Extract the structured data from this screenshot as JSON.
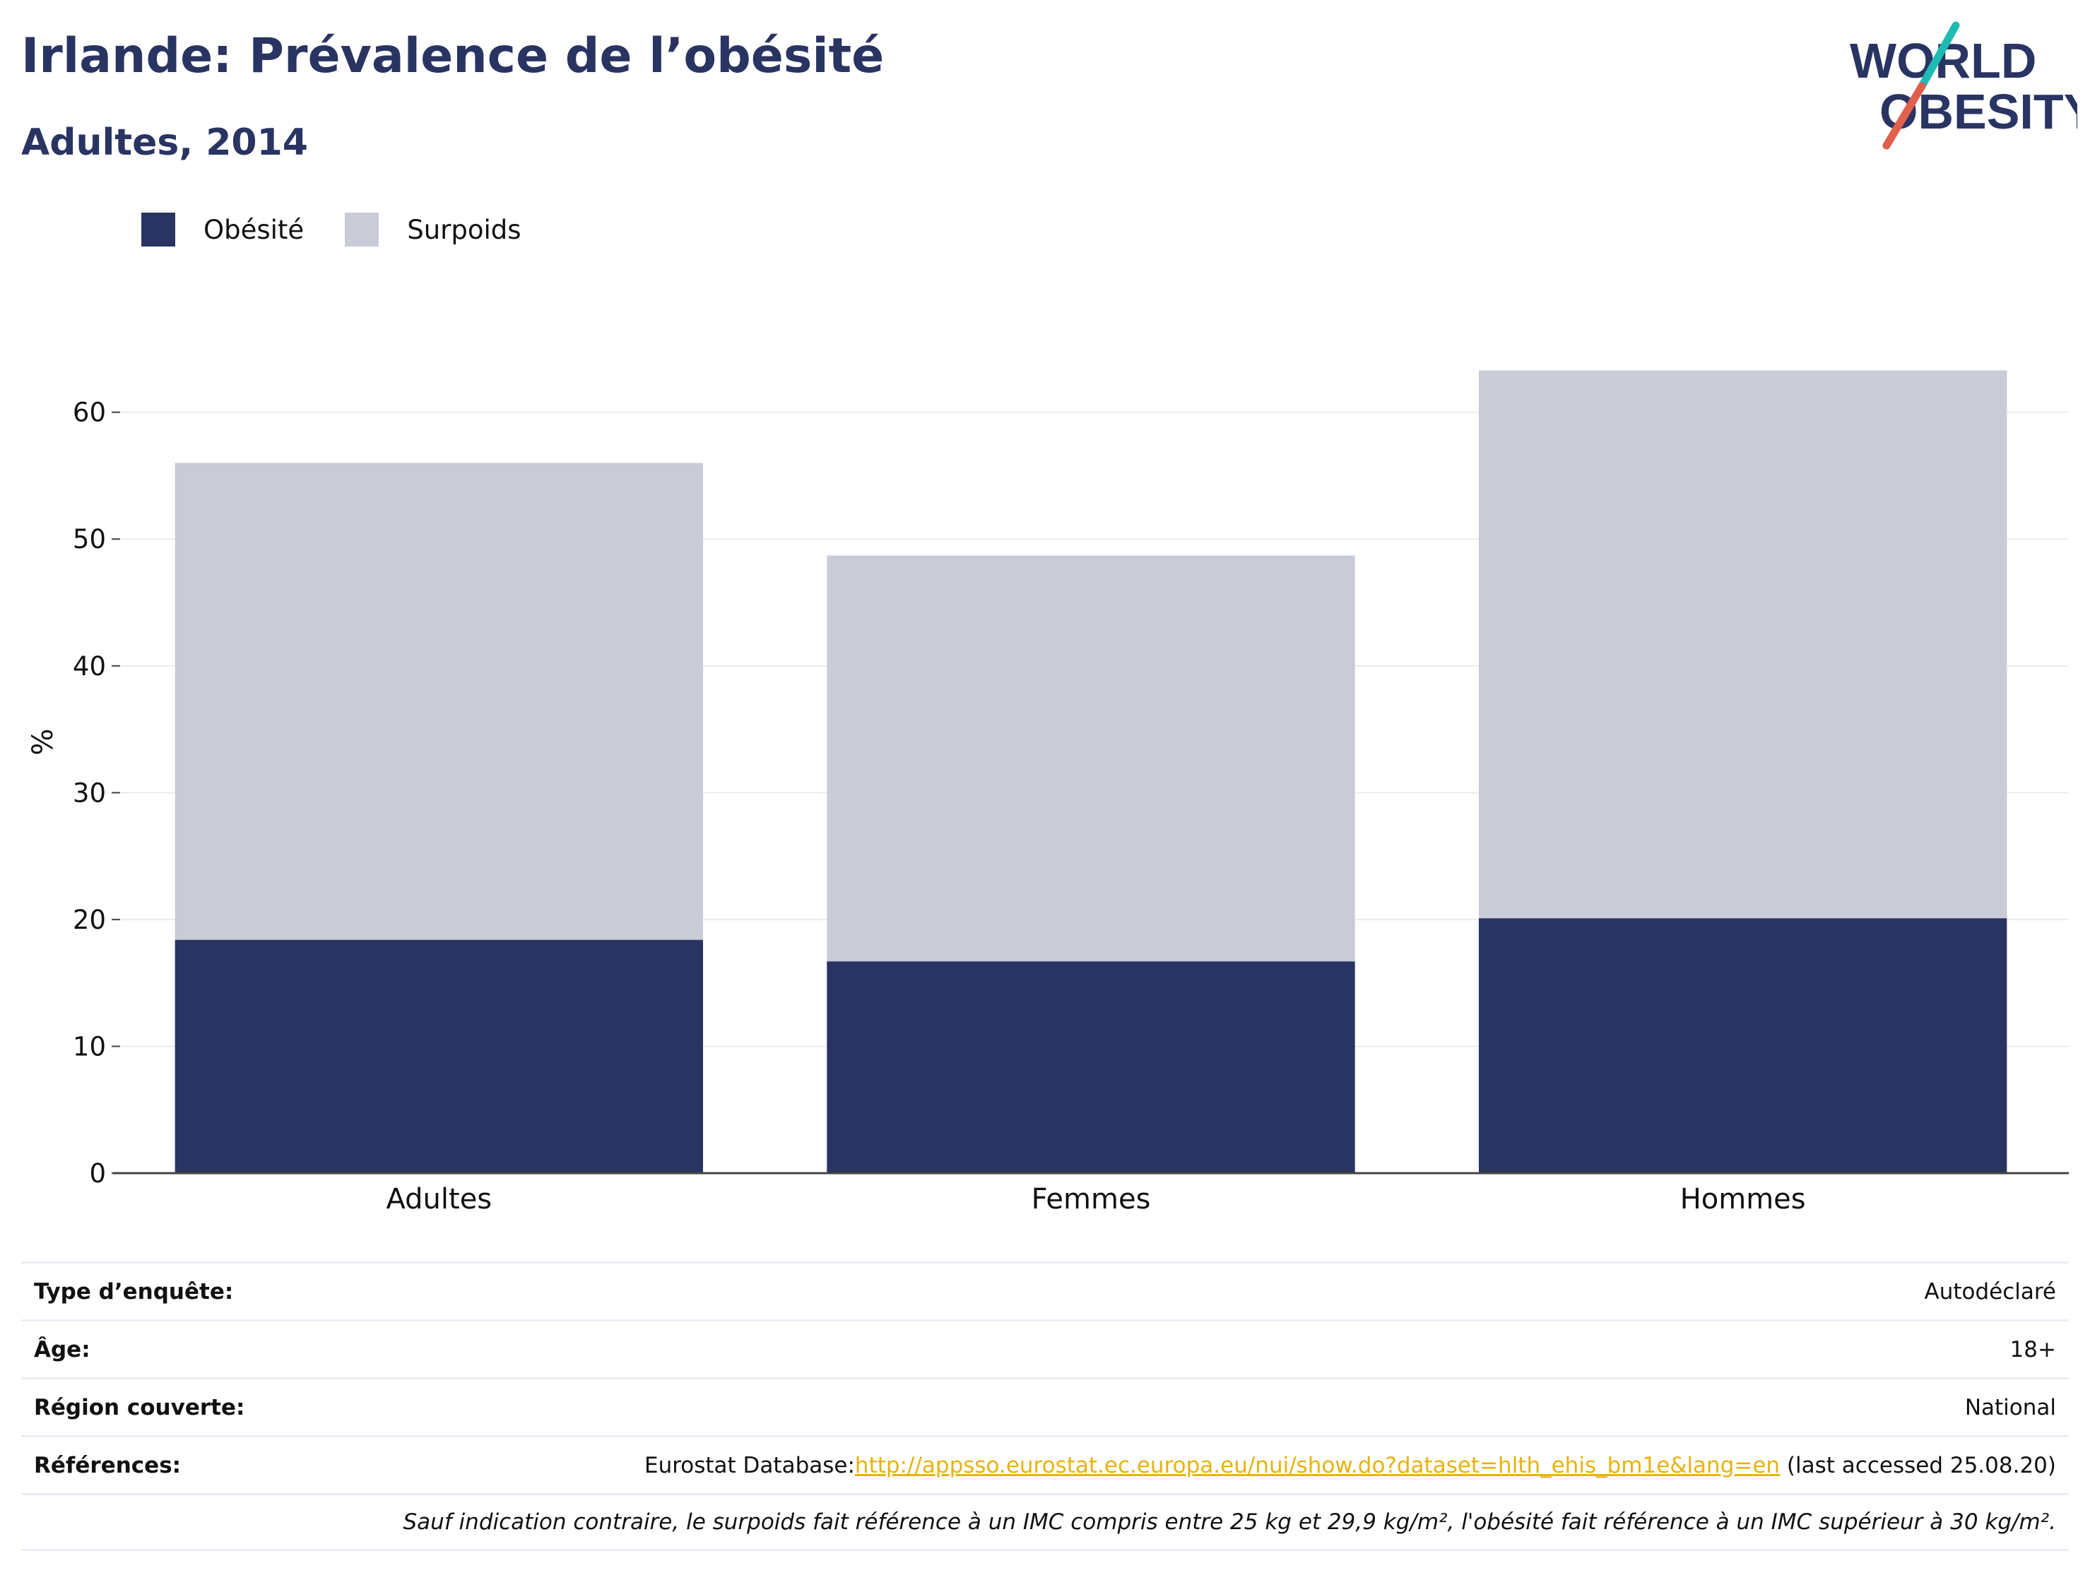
{
  "title": "Irlande: Prévalence de l’obésité",
  "subtitle": "Adultes, 2014",
  "logo": {
    "line1": "WORLD",
    "line2": "OBESITY"
  },
  "colors": {
    "obesity": "#293462",
    "overweight": "#c9cbd7",
    "accent_red": "#e0604d",
    "accent_teal": "#1ebbb5",
    "link": "#e8b30f"
  },
  "chart_data": {
    "type": "bar",
    "stacked": true,
    "categories": [
      "Adultes",
      "Femmes",
      "Hommes"
    ],
    "series": [
      {
        "name": "Obésité",
        "values": [
          18.4,
          16.7,
          20.1
        ]
      },
      {
        "name": "Surpoids",
        "values": [
          37.6,
          32.0,
          43.2
        ]
      }
    ],
    "ylabel": "%",
    "ylim": [
      0,
      68
    ],
    "yticks": [
      0,
      10,
      20,
      30,
      40,
      50,
      60
    ],
    "grid": true,
    "legend_position": "top-left"
  },
  "info": {
    "survey_label": "Type d’enquête:",
    "survey_value": "Autodéclaré",
    "age_label": "Âge:",
    "age_value": "18+",
    "region_label": "Région couverte:",
    "region_value": "National",
    "refs_label": "Références:",
    "refs_prefix": "Eurostat Database:",
    "refs_link": "http://appsso.eurostat.ec.europa.eu/nui/show.do?dataset=hlth_ehis_bm1e&lang=en",
    "refs_suffix": " (last accessed 25.08.20)",
    "note": "Sauf indication contraire, le surpoids fait référence à un IMC compris entre 25 kg et 29,9 kg/m², l'obésité fait référence à un IMC supérieur à 30 kg/m²."
  }
}
